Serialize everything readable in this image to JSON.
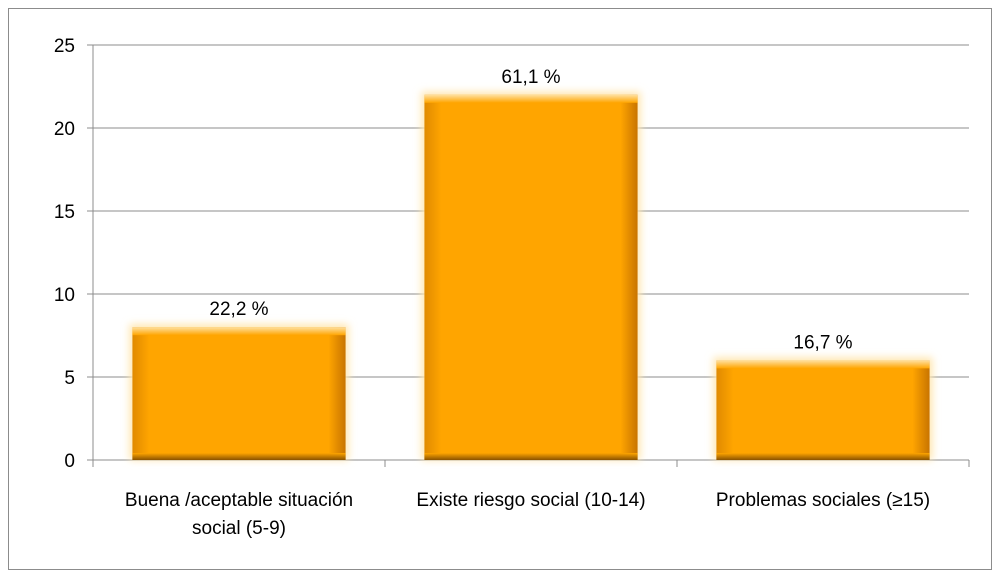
{
  "chart_data": {
    "type": "bar",
    "categories": [
      [
        "Buena /aceptable situación",
        "social (5-9)"
      ],
      [
        "Existe riesgo social (10-14)"
      ],
      [
        "Problemas sociales (≥15)"
      ]
    ],
    "values": [
      8,
      22,
      6
    ],
    "data_labels": [
      "22,2 %",
      "61,1 %",
      "16,7 %"
    ],
    "title": "",
    "xlabel": "",
    "ylabel": "",
    "ylim": [
      0,
      25
    ],
    "yticks": [
      0,
      5,
      10,
      15,
      20,
      25
    ],
    "grid": true,
    "legend": "none",
    "colors": {
      "bar_main": "#ffa500",
      "bar_light": "#ffd27a",
      "bar_dark": "#b36b00",
      "glow": "#ffe6b0",
      "grid": "#8c8c8c"
    }
  }
}
